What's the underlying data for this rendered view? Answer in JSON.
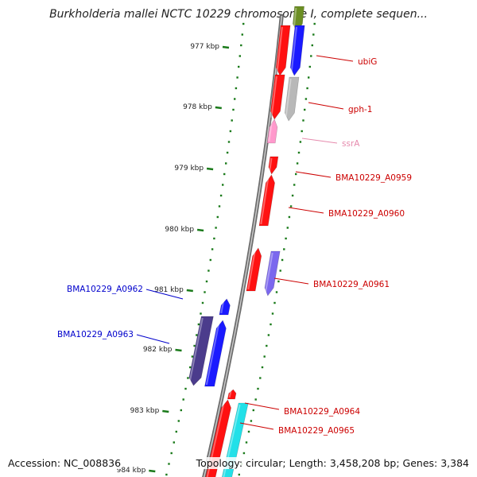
{
  "title": "Burkholderia mallei NCTC 10229 chromosome I, complete sequen...",
  "footer": {
    "accession": "Accession: NC_008836",
    "topology": "Topology: circular; Length: 3,458,208 bp; Genes: 3,384"
  },
  "colors": {
    "ruler_tick": "#1a7a1a",
    "backbone": "#888888",
    "label_forward": "#cc0000",
    "label_reverse": "#0000cc",
    "label_rna": "#e68aad"
  },
  "ruler": [
    {
      "label": "977 kbp"
    },
    {
      "label": "978 kbp"
    },
    {
      "label": "979 kbp"
    },
    {
      "label": "980 kbp"
    },
    {
      "label": "981 kbp"
    },
    {
      "label": "982 kbp"
    },
    {
      "label": "983 kbp"
    },
    {
      "label": "984 kbp"
    }
  ],
  "gene_labels": [
    {
      "name": "ubiG",
      "strand": "forward"
    },
    {
      "name": "gph-1",
      "strand": "forward"
    },
    {
      "name": "ssrA",
      "strand": "rna"
    },
    {
      "name": "BMA10229_A0959",
      "strand": "forward"
    },
    {
      "name": "BMA10229_A0960",
      "strand": "forward"
    },
    {
      "name": "BMA10229_A0961",
      "strand": "forward"
    },
    {
      "name": "BMA10229_A0962",
      "strand": "reverse"
    },
    {
      "name": "BMA10229_A0963",
      "strand": "reverse"
    },
    {
      "name": "BMA10229_A0964",
      "strand": "forward"
    },
    {
      "name": "BMA10229_A0965",
      "strand": "forward"
    }
  ]
}
